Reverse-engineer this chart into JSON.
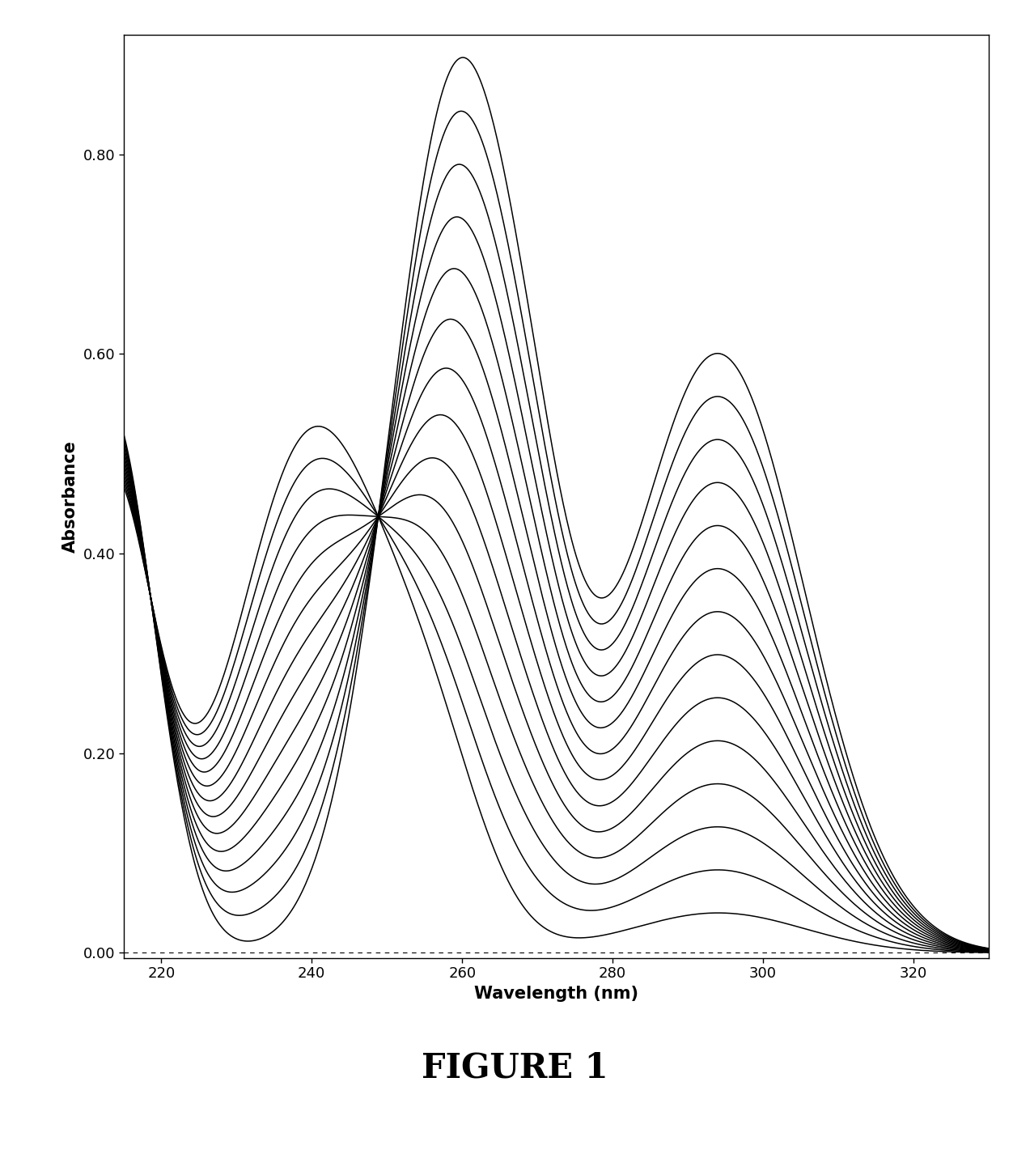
{
  "xlabel": "Wavelength (nm)",
  "ylabel": "Absorbance",
  "figure_title": "FIGURE 1",
  "xlim": [
    215,
    330
  ],
  "ylim": [
    -0.005,
    0.92
  ],
  "yticks": [
    0.0,
    0.2,
    0.4,
    0.6,
    0.8
  ],
  "xticks": [
    220,
    240,
    260,
    280,
    300,
    320
  ],
  "n_curves": 14,
  "line_color": "#000000",
  "line_width": 1.1,
  "background_color": "#ffffff",
  "figure_label_fontsize": 30,
  "axis_label_fontsize": 15,
  "tick_fontsize": 13,
  "iso1_wl": 253.0,
  "iso1_abs": 0.44,
  "iso2_wl": 276.0,
  "iso2_abs": 0.35
}
